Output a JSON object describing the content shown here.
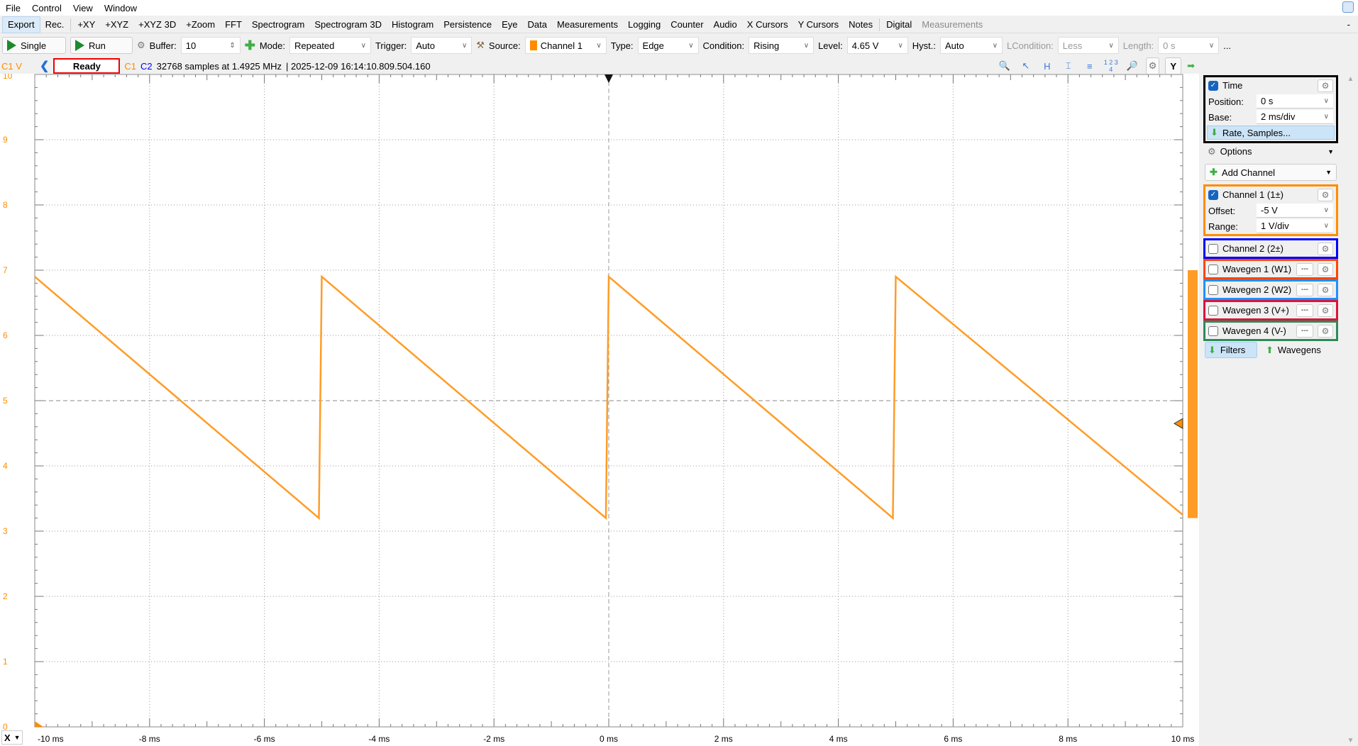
{
  "menu": [
    "File",
    "Control",
    "View",
    "Window"
  ],
  "tabs": {
    "items": [
      "Export",
      "Rec.",
      "+XY",
      "+XYZ",
      "+XYZ 3D",
      "+Zoom",
      "FFT",
      "Spectrogram",
      "Spectrogram 3D",
      "Histogram",
      "Persistence",
      "Eye",
      "Data",
      "Measurements",
      "Logging",
      "Counter",
      "Audio",
      "X Cursors",
      "Y Cursors",
      "Notes",
      "Digital"
    ],
    "disabled": "Measurements",
    "minimize": "-"
  },
  "toolbar": {
    "single": "Single",
    "run": "Run",
    "buffer_label": "Buffer:",
    "buffer": "10",
    "mode_label": "Mode:",
    "mode": "Repeated",
    "trigger_label": "Trigger:",
    "trigger": "Auto",
    "source_label": "Source:",
    "source": "Channel 1",
    "type_label": "Type:",
    "type": "Edge",
    "condition_label": "Condition:",
    "condition": "Rising",
    "level_label": "Level:",
    "level": "4.65 V",
    "hyst_label": "Hyst.:",
    "hyst": "Auto",
    "lcondition_label": "LCondition:",
    "lcondition": "Less",
    "length_label": "Length:",
    "length": "0 s",
    "more": "..."
  },
  "status": {
    "axis_unit": "C1 V",
    "state": "Ready",
    "c1": "C1",
    "c2": "C2",
    "info": "32768 samples at 1.4925 MHz",
    "timestamp": "| 2025-12-09 16:14:10.809.504.160",
    "y_button": "Y"
  },
  "colors": {
    "channel1": "#ff9c26",
    "channel2": "#0000ff",
    "w1": "#ff4500",
    "w2": "#1e90ff",
    "w3": "#dc143c",
    "w4": "#2e8b57"
  },
  "chart_data": {
    "type": "line",
    "xlabel_axis_button": "X",
    "x_ticks": [
      "-10 ms",
      "-8 ms",
      "-6 ms",
      "-4 ms",
      "-2 ms",
      "0 ms",
      "2 ms",
      "4 ms",
      "6 ms",
      "8 ms",
      "10 ms"
    ],
    "y_ticks": [
      "10",
      "9",
      "8",
      "7",
      "6",
      "5",
      "4",
      "3",
      "2",
      "1",
      "0"
    ],
    "xlim_ms": [
      -10,
      10
    ],
    "ylim_V": [
      0,
      10
    ],
    "grid": true,
    "trigger_time_ms": 0,
    "trigger_level_V": 4.65,
    "series": [
      {
        "x_ms": [
          -10,
          -5.05,
          -5.0,
          -0.05,
          0.0,
          4.95,
          5.0,
          10
        ],
        "y_V": [
          6.9,
          3.2,
          6.9,
          3.2,
          6.9,
          3.2,
          6.9,
          3.25
        ]
      }
    ]
  },
  "panel": {
    "time": {
      "title": "Time",
      "position_label": "Position:",
      "position": "0 s",
      "base_label": "Base:",
      "base": "2 ms/div",
      "rate": "Rate, Samples..."
    },
    "options": "Options",
    "add_channel": "Add Channel",
    "ch1": {
      "title": "Channel 1 (1±)",
      "offset_label": "Offset:",
      "offset": "-5 V",
      "range_label": "Range:",
      "range": "1 V/div"
    },
    "ch2": "Channel 2 (2±)",
    "wavegens": [
      "Wavegen 1 (W1)",
      "Wavegen 2 (W2)",
      "Wavegen 3 (V+)",
      "Wavegen 4 (V-)"
    ],
    "wavegen_mini": "---",
    "filters": "Filters",
    "wavegens_btn": "Wavegens"
  }
}
